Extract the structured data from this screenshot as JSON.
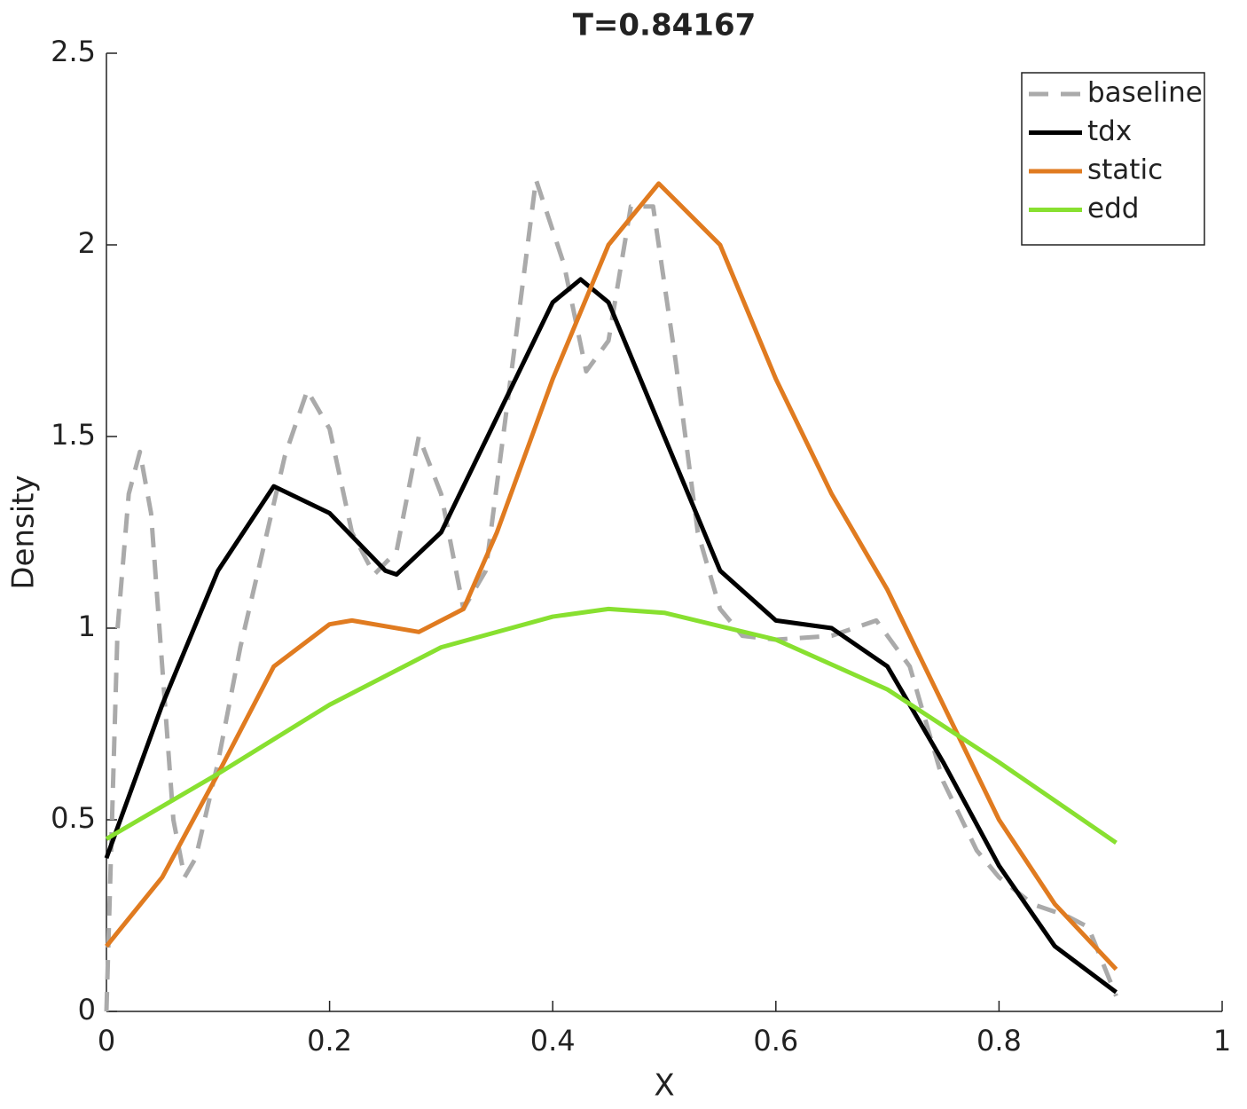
{
  "chart_data": {
    "type": "line",
    "title": "T=0.84167",
    "xlabel": "X",
    "ylabel": "Density",
    "xlim": [
      0,
      1
    ],
    "xticks": [
      0,
      0.2,
      0.4,
      0.6,
      0.8,
      1
    ],
    "ylim": [
      0,
      2.5
    ],
    "yticks": [
      0,
      0.5,
      1,
      1.5,
      2,
      2.5
    ],
    "legend": "top-right",
    "series": [
      {
        "name": "baseline",
        "color": "#aaaaaa",
        "linestyle": "dashed",
        "x": [
          0,
          0.005,
          0.01,
          0.02,
          0.03,
          0.04,
          0.05,
          0.06,
          0.07,
          0.08,
          0.1,
          0.12,
          0.14,
          0.16,
          0.18,
          0.2,
          0.22,
          0.24,
          0.26,
          0.28,
          0.3,
          0.32,
          0.34,
          0.36,
          0.385,
          0.41,
          0.43,
          0.45,
          0.47,
          0.49,
          0.51,
          0.53,
          0.55,
          0.57,
          0.6,
          0.65,
          0.69,
          0.72,
          0.75,
          0.78,
          0.8,
          0.83,
          0.86,
          0.88,
          0.905
        ],
        "values": [
          0,
          0.5,
          1.0,
          1.35,
          1.46,
          1.3,
          0.9,
          0.5,
          0.35,
          0.4,
          0.65,
          0.95,
          1.2,
          1.45,
          1.62,
          1.52,
          1.25,
          1.14,
          1.2,
          1.5,
          1.35,
          1.05,
          1.15,
          1.6,
          2.17,
          1.95,
          1.67,
          1.75,
          2.1,
          2.1,
          1.7,
          1.25,
          1.05,
          0.98,
          0.97,
          0.98,
          1.02,
          0.9,
          0.6,
          0.42,
          0.35,
          0.28,
          0.25,
          0.22,
          0.04
        ]
      },
      {
        "name": "tdx",
        "color": "#000000",
        "linestyle": "solid",
        "x": [
          0,
          0.05,
          0.1,
          0.15,
          0.2,
          0.25,
          0.26,
          0.3,
          0.35,
          0.4,
          0.425,
          0.45,
          0.5,
          0.55,
          0.6,
          0.65,
          0.7,
          0.75,
          0.8,
          0.85,
          0.905
        ],
        "values": [
          0.4,
          0.8,
          1.15,
          1.37,
          1.3,
          1.15,
          1.14,
          1.25,
          1.55,
          1.85,
          1.91,
          1.85,
          1.5,
          1.15,
          1.02,
          1.0,
          0.9,
          0.65,
          0.38,
          0.17,
          0.05
        ]
      },
      {
        "name": "static",
        "color": "#e07b20",
        "linestyle": "solid",
        "x": [
          0,
          0.05,
          0.1,
          0.15,
          0.2,
          0.22,
          0.28,
          0.32,
          0.35,
          0.4,
          0.45,
          0.495,
          0.55,
          0.6,
          0.65,
          0.7,
          0.75,
          0.8,
          0.85,
          0.905
        ],
        "values": [
          0.17,
          0.35,
          0.62,
          0.9,
          1.01,
          1.02,
          0.99,
          1.05,
          1.25,
          1.65,
          2.0,
          2.16,
          2.0,
          1.65,
          1.35,
          1.1,
          0.8,
          0.5,
          0.28,
          0.11
        ]
      },
      {
        "name": "edd",
        "color": "#88e030",
        "linestyle": "solid",
        "x": [
          0,
          0.1,
          0.2,
          0.3,
          0.4,
          0.45,
          0.5,
          0.6,
          0.7,
          0.8,
          0.905
        ],
        "values": [
          0.45,
          0.62,
          0.8,
          0.95,
          1.03,
          1.05,
          1.04,
          0.97,
          0.84,
          0.65,
          0.44
        ]
      }
    ]
  }
}
